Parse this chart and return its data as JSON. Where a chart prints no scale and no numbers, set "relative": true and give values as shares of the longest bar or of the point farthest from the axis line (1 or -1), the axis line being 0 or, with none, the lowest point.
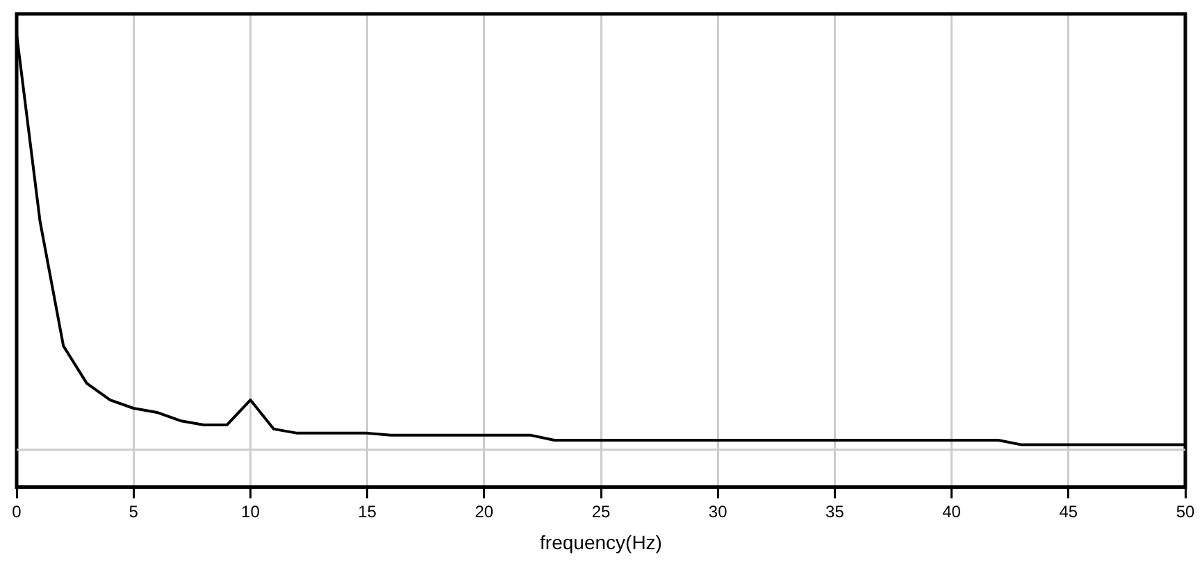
{
  "chart_data": {
    "type": "line",
    "xlabel": "frequency(Hz)",
    "relative": true,
    "grid": "x",
    "marker": "none",
    "line_style": "solid",
    "xlim": [
      0,
      50
    ],
    "xticks": [
      0,
      5,
      10,
      15,
      20,
      25,
      30,
      35,
      40,
      45,
      50
    ],
    "x": [
      0,
      1,
      2,
      3,
      4,
      5,
      6,
      7,
      8,
      9,
      10,
      11,
      12,
      13,
      14,
      15,
      16,
      17,
      18,
      19,
      20,
      21,
      22,
      23,
      24,
      25,
      26,
      27,
      28,
      29,
      30,
      31,
      32,
      33,
      34,
      35,
      36,
      37,
      38,
      39,
      40,
      41,
      42,
      43,
      44,
      45,
      46,
      47,
      48,
      49,
      50
    ],
    "series": [
      {
        "color": "#000000",
        "values": [
          1.0,
          0.55,
          0.25,
          0.16,
          0.12,
          0.1,
          0.09,
          0.07,
          0.06,
          0.06,
          0.12,
          0.05,
          0.04,
          0.04,
          0.04,
          0.04,
          0.035,
          0.035,
          0.035,
          0.035,
          0.035,
          0.035,
          0.035,
          0.023,
          0.023,
          0.023,
          0.023,
          0.023,
          0.023,
          0.023,
          0.023,
          0.023,
          0.023,
          0.023,
          0.023,
          0.023,
          0.023,
          0.023,
          0.023,
          0.023,
          0.023,
          0.023,
          0.023,
          0.012,
          0.012,
          0.012,
          0.012,
          0.012,
          0.012,
          0.012,
          0.012
        ]
      }
    ]
  }
}
